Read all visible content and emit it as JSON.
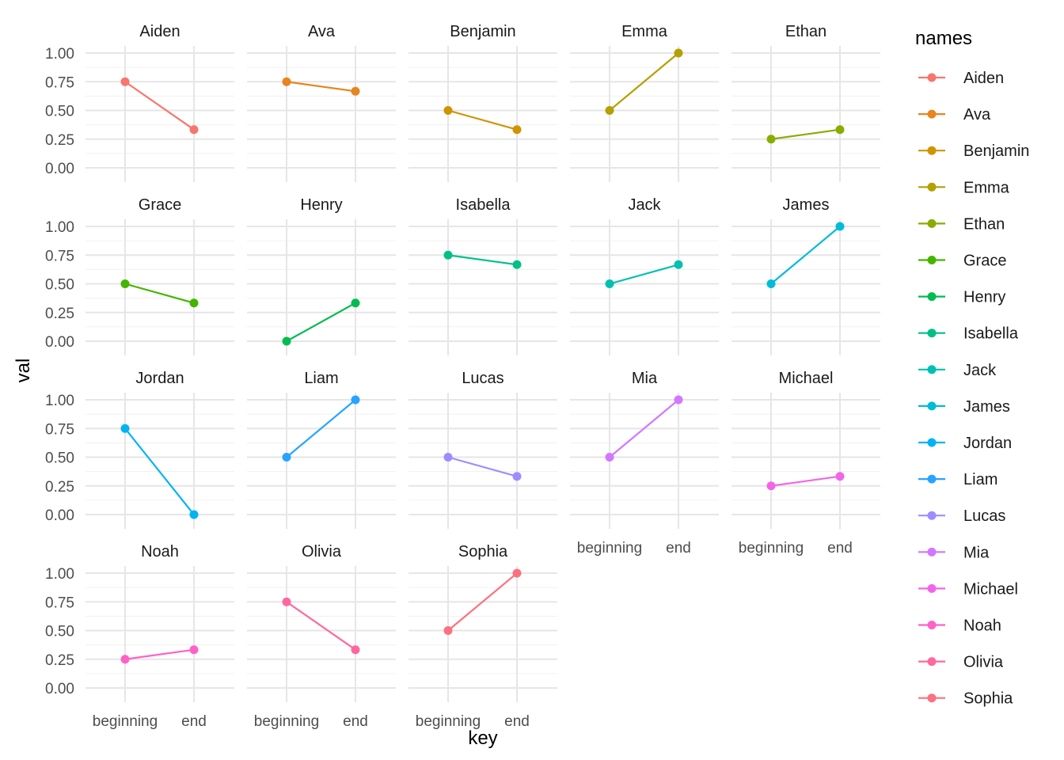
{
  "chart_data": {
    "type": "line",
    "facet_layout": "wrap",
    "ncol": 5,
    "categories": [
      "beginning",
      "end"
    ],
    "xlabel": "key",
    "ylabel": "val",
    "ylim": [
      0,
      1
    ],
    "yticks": [
      0,
      0.25,
      0.5,
      0.75,
      1.0
    ],
    "ytick_labels": [
      "0.00",
      "0.25",
      "0.50",
      "0.75",
      "1.00"
    ],
    "grid": true,
    "legend": {
      "title": "names",
      "position": "right"
    },
    "series": [
      {
        "name": "Aiden",
        "values": [
          0.75,
          0.333
        ],
        "color": "#F8766D"
      },
      {
        "name": "Ava",
        "values": [
          0.75,
          0.667
        ],
        "color": "#E7851E"
      },
      {
        "name": "Benjamin",
        "values": [
          0.5,
          0.333
        ],
        "color": "#D09400"
      },
      {
        "name": "Emma",
        "values": [
          0.5,
          1.0
        ],
        "color": "#B2A100"
      },
      {
        "name": "Ethan",
        "values": [
          0.25,
          0.333
        ],
        "color": "#89AC00"
      },
      {
        "name": "Grace",
        "values": [
          0.5,
          0.333
        ],
        "color": "#45B500"
      },
      {
        "name": "Henry",
        "values": [
          0.0,
          0.333
        ],
        "color": "#00BC51"
      },
      {
        "name": "Isabella",
        "values": [
          0.75,
          0.667
        ],
        "color": "#00C087"
      },
      {
        "name": "Jack",
        "values": [
          0.5,
          0.667
        ],
        "color": "#00C0B2"
      },
      {
        "name": "James",
        "values": [
          0.5,
          1.0
        ],
        "color": "#00BCD6"
      },
      {
        "name": "Jordan",
        "values": [
          0.75,
          0.0
        ],
        "color": "#00B3F2"
      },
      {
        "name": "Liam",
        "values": [
          0.5,
          1.0
        ],
        "color": "#29A3FF"
      },
      {
        "name": "Lucas",
        "values": [
          0.5,
          0.333
        ],
        "color": "#9C8DFF"
      },
      {
        "name": "Mia",
        "values": [
          0.5,
          1.0
        ],
        "color": "#D277FF"
      },
      {
        "name": "Michael",
        "values": [
          0.25,
          0.333
        ],
        "color": "#F166E8"
      },
      {
        "name": "Noah",
        "values": [
          0.25,
          0.333
        ],
        "color": "#FF61C7"
      },
      {
        "name": "Olivia",
        "values": [
          0.75,
          0.333
        ],
        "color": "#FF689E"
      },
      {
        "name": "Sophia",
        "values": [
          0.5,
          1.0
        ],
        "color": "#FC717F"
      }
    ]
  }
}
